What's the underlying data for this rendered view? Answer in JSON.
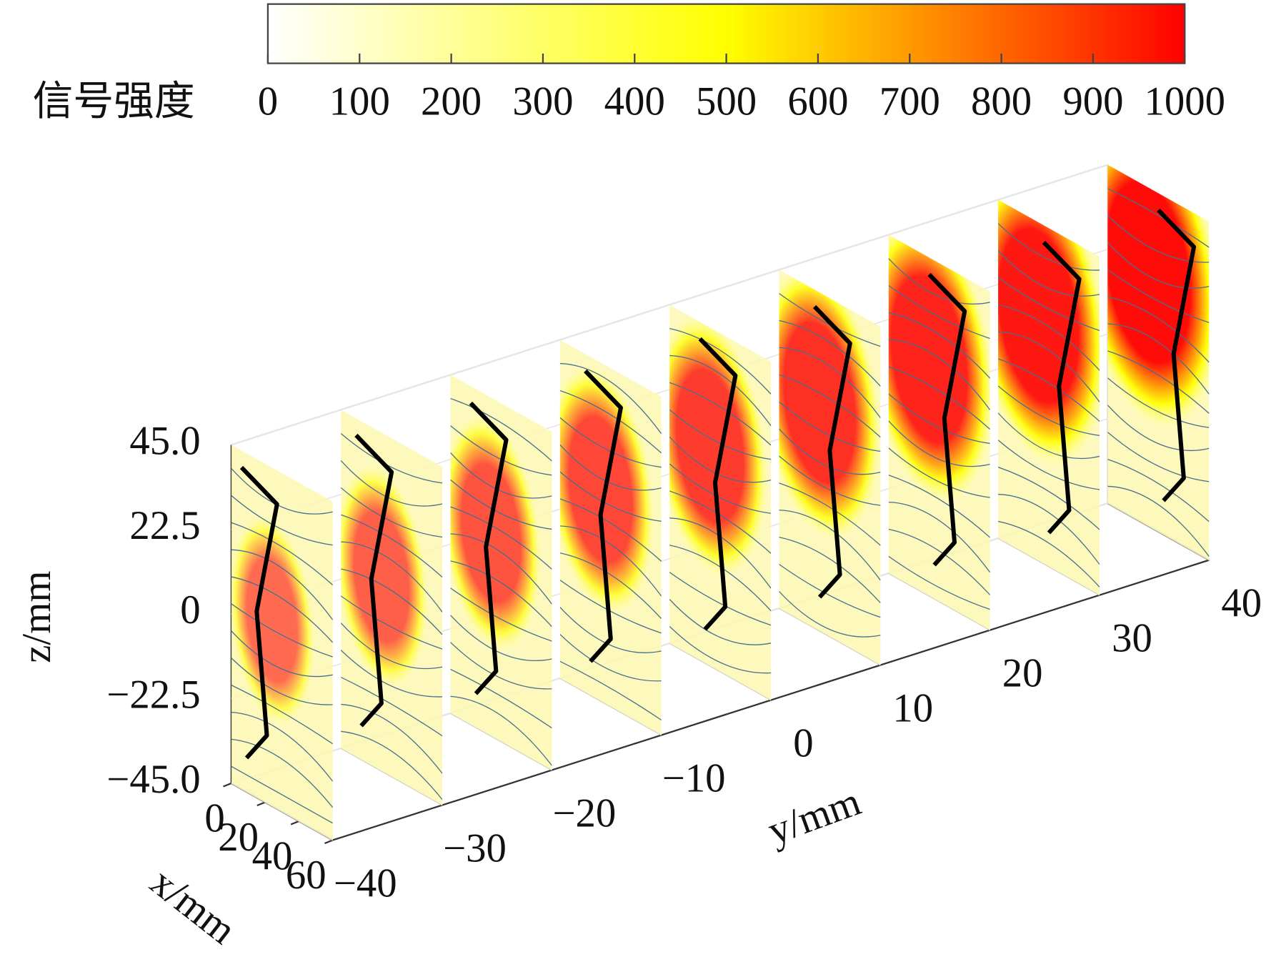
{
  "chart_data": {
    "type": "slice3d",
    "colorbar": {
      "label": "信号强度",
      "clim": [
        0,
        1000
      ],
      "ticks": [
        0,
        100,
        200,
        300,
        400,
        500,
        600,
        700,
        800,
        900,
        1000
      ],
      "colormap": [
        "#ffffff",
        "#ffff00",
        "#ff0000"
      ]
    },
    "zlabel": "z/mm",
    "zlim": [
      -45,
      45
    ],
    "zticks": [
      {
        "value": 45,
        "label": "45.0"
      },
      {
        "value": 22.5,
        "label": "22.5"
      },
      0,
      {
        "value": -22.5,
        "label": "−22.5"
      },
      {
        "value": -45,
        "label": "−45.0"
      }
    ],
    "ylabel": "y/mm",
    "ylim": [
      -40,
      40
    ],
    "yticks": [
      {
        "value": -40,
        "label": "−40"
      },
      {
        "value": -30,
        "label": "−30"
      },
      {
        "value": -20,
        "label": "−20"
      },
      {
        "value": -10,
        "label": "−10"
      },
      0,
      10,
      20,
      30,
      40
    ],
    "xlabel": "x/mm",
    "xlim": [
      0,
      60
    ],
    "xticks": [
      0,
      20,
      40,
      60
    ]
  }
}
